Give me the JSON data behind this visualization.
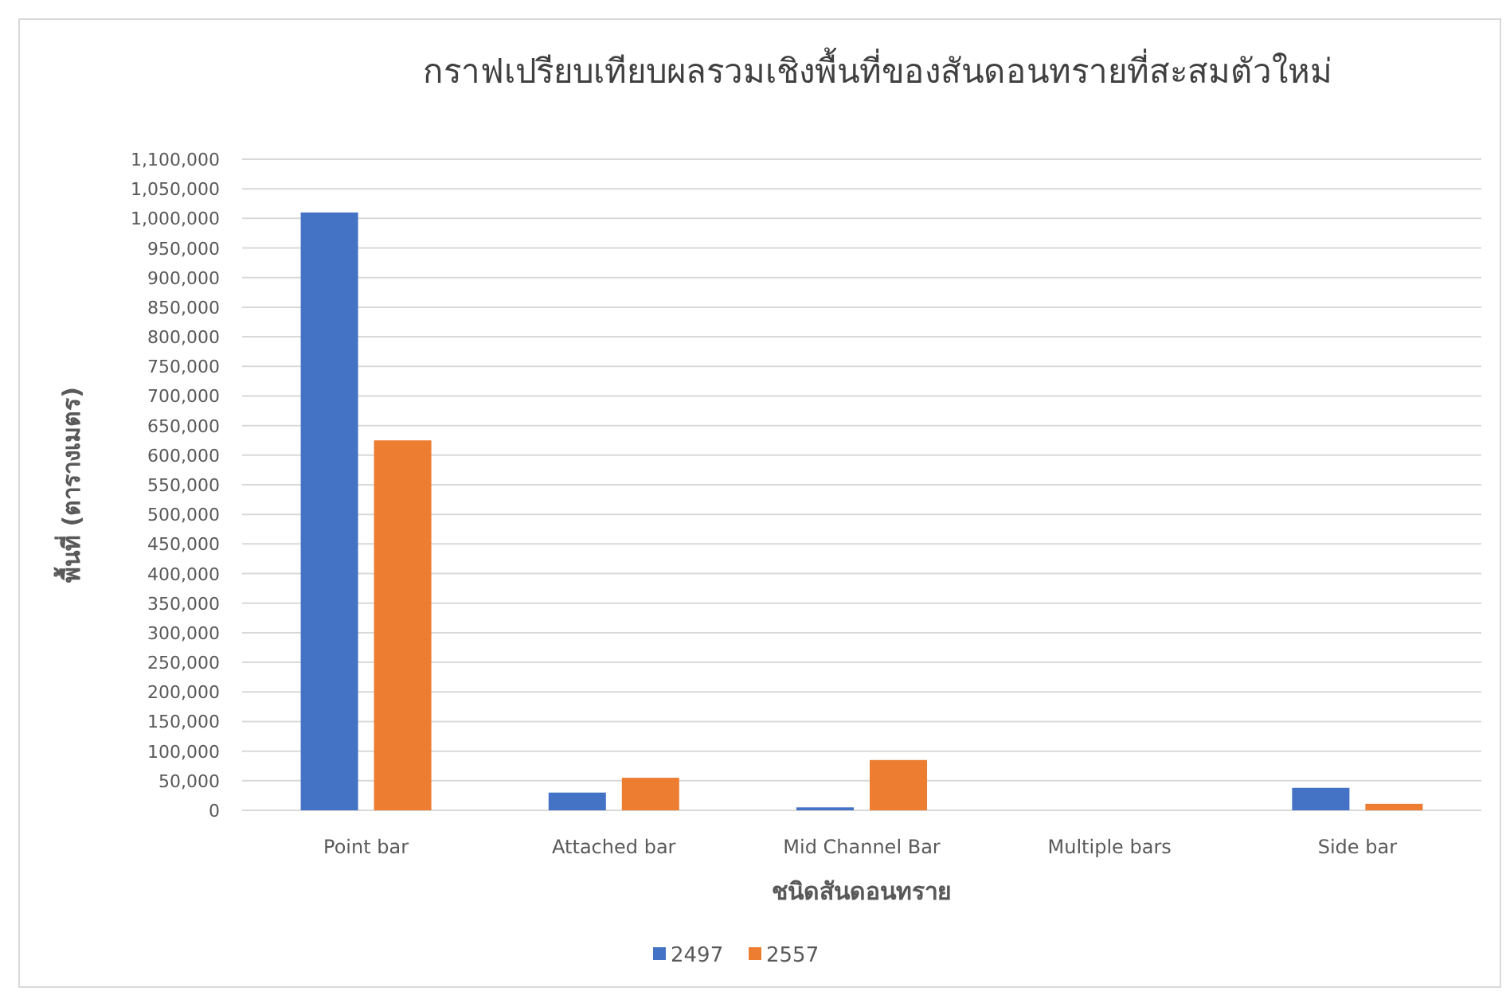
{
  "chart_data": {
    "type": "bar",
    "title": "กราฟเปรียบเทียบผลรวมเชิงพื้นที่ของสันดอนทรายที่สะสมตัวใหม่",
    "xlabel": "ชนิดสันดอนทราย",
    "ylabel": "พื้นที่ (ตารางเมตร)",
    "categories": [
      "Point bar",
      "Attached bar",
      "Mid Channel Bar",
      "Multiple bars",
      "Side bar"
    ],
    "series": [
      {
        "name": "2497",
        "color": "#4472c4",
        "values": [
          1010000,
          30000,
          5000,
          0,
          38000
        ]
      },
      {
        "name": "2557",
        "color": "#ed7d31",
        "values": [
          625000,
          55000,
          85000,
          0,
          11000
        ]
      }
    ],
    "ylim": [
      0,
      1100000
    ],
    "yticks": [
      {
        "value": 0,
        "label": "0"
      },
      {
        "value": 50000,
        "label": "50,000"
      },
      {
        "value": 100000,
        "label": "100,000"
      },
      {
        "value": 150000,
        "label": "150,000"
      },
      {
        "value": 200000,
        "label": "200,000"
      },
      {
        "value": 250000,
        "label": "250,000"
      },
      {
        "value": 300000,
        "label": "300,000"
      },
      {
        "value": 350000,
        "label": "350,000"
      },
      {
        "value": 400000,
        "label": "400,000"
      },
      {
        "value": 450000,
        "label": "450,000"
      },
      {
        "value": 500000,
        "label": "500,000"
      },
      {
        "value": 550000,
        "label": "550,000"
      },
      {
        "value": 600000,
        "label": "600,000"
      },
      {
        "value": 650000,
        "label": "650,000"
      },
      {
        "value": 700000,
        "label": "700,000"
      },
      {
        "value": 750000,
        "label": "750,000"
      },
      {
        "value": 800000,
        "label": "800,000"
      },
      {
        "value": 850000,
        "label": "850,000"
      },
      {
        "value": 900000,
        "label": "900,000"
      },
      {
        "value": 950000,
        "label": "950,000"
      },
      {
        "value": 1000000,
        "label": "1,000,000"
      },
      {
        "value": 1050000,
        "label": "1,050,000"
      },
      {
        "value": 1100000,
        "label": "1,100,000"
      }
    ],
    "grid": "y",
    "legend": "bottom"
  }
}
